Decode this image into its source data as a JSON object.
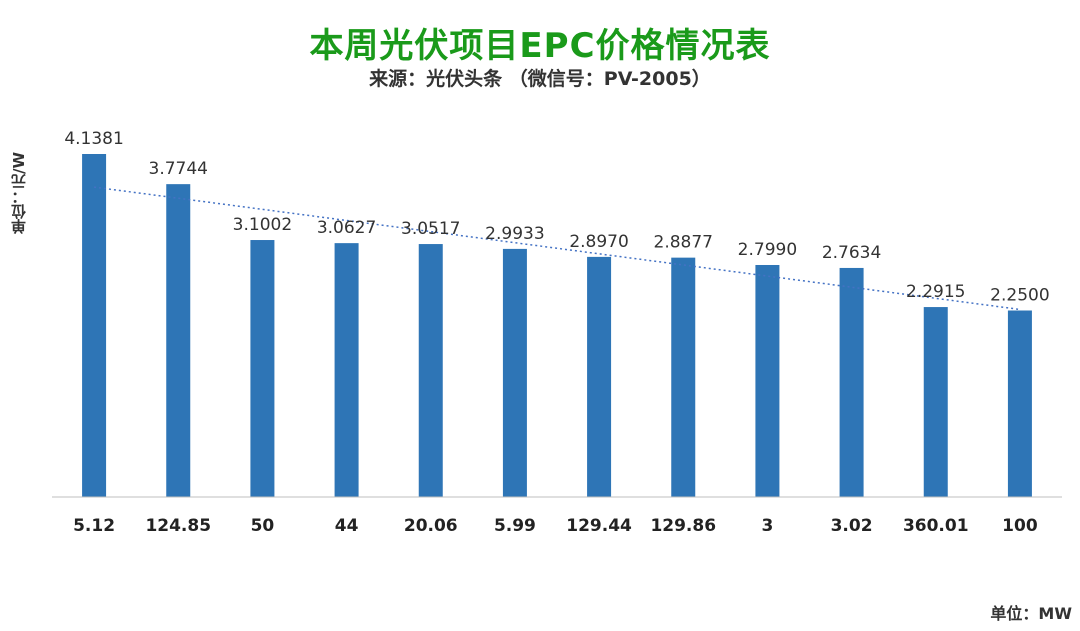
{
  "title": "本周光伏项目EPC价格情况表",
  "subtitle": "来源：光伏头条  （微信号：PV-2005）",
  "y_unit_label": "单位：元/W",
  "x_unit_label": "单位：MW",
  "chart_data": {
    "type": "bar",
    "categories": [
      "5.12",
      "124.85",
      "50",
      "44",
      "20.06",
      "5.99",
      "129.44",
      "129.86",
      "3",
      "3.02",
      "360.01",
      "100"
    ],
    "values": [
      4.1381,
      3.7744,
      3.1002,
      3.0627,
      3.0517,
      2.9933,
      2.897,
      2.8877,
      2.799,
      2.7634,
      2.2915,
      2.25
    ],
    "value_labels": [
      "4.1381",
      "3.7744",
      "3.1002",
      "3.0627",
      "3.0517",
      "2.9933",
      "2.8970",
      "2.8877",
      "2.7990",
      "2.7634",
      "2.2915",
      "2.2500"
    ],
    "title": "本周光伏项目EPC价格情况表",
    "xlabel": "单位：MW",
    "ylabel": "单位：元/W",
    "ylim": [
      0,
      4.5
    ],
    "grid": false,
    "trendline": "linear, dotted",
    "colors": {
      "bar": "#2e75b6",
      "trendline": "#4472c4",
      "title": "#1a9a1a"
    }
  }
}
